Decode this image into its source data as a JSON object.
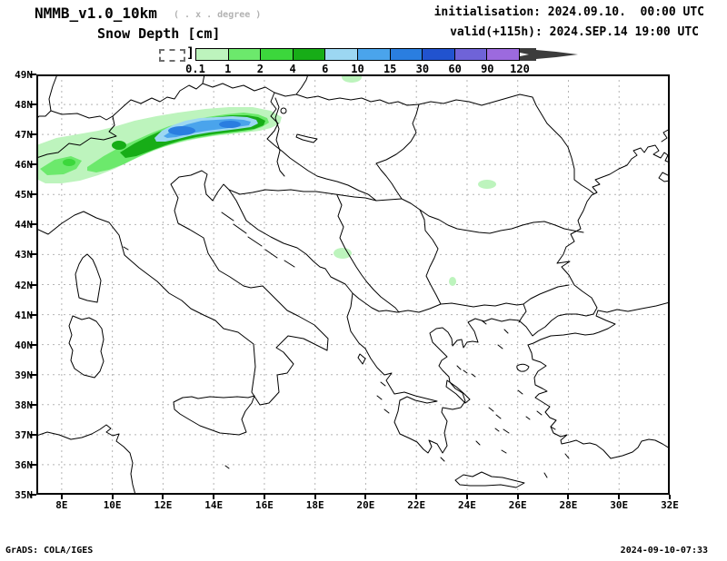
{
  "header": {
    "model": "NMMB_v1.0_10km",
    "resolution_note": "( . x . degree )",
    "variable": "Snow Depth [cm]",
    "init": "initialisation: 2024.09.10.  00:00 UTC",
    "valid": "valid(+115h): 2024.SEP.14 19:00 UTC"
  },
  "colorbar": {
    "bracket": "]",
    "tick_labels": [
      "0.1",
      "1",
      "2",
      "4",
      "6",
      "10",
      "15",
      "30",
      "60",
      "90",
      "120"
    ],
    "segment_colors": [
      "#bdf4bd",
      "#6ce96c",
      "#3cd73c",
      "#17ad17",
      "#9cd7f2",
      "#4aa4ec",
      "#2a7ee0",
      "#2153cf",
      "#6f63d8",
      "#9c6ade"
    ],
    "arrow_color": "#3c3c3c"
  },
  "axes": {
    "lat": [
      {
        "v": 49,
        "label": "49N"
      },
      {
        "v": 48,
        "label": "48N"
      },
      {
        "v": 47,
        "label": "47N"
      },
      {
        "v": 46,
        "label": "46N"
      },
      {
        "v": 45,
        "label": "45N"
      },
      {
        "v": 44,
        "label": "44N"
      },
      {
        "v": 43,
        "label": "43N"
      },
      {
        "v": 42,
        "label": "42N"
      },
      {
        "v": 41,
        "label": "41N"
      },
      {
        "v": 40,
        "label": "40N"
      },
      {
        "v": 39,
        "label": "39N"
      },
      {
        "v": 38,
        "label": "38N"
      },
      {
        "v": 37,
        "label": "37N"
      },
      {
        "v": 36,
        "label": "36N"
      },
      {
        "v": 35,
        "label": "35N"
      }
    ],
    "lon": [
      {
        "v": 8,
        "label": "8E"
      },
      {
        "v": 10,
        "label": "10E"
      },
      {
        "v": 12,
        "label": "12E"
      },
      {
        "v": 14,
        "label": "14E"
      },
      {
        "v": 16,
        "label": "16E"
      },
      {
        "v": 18,
        "label": "18E"
      },
      {
        "v": 20,
        "label": "20E"
      },
      {
        "v": 22,
        "label": "22E"
      },
      {
        "v": 24,
        "label": "24E"
      },
      {
        "v": 26,
        "label": "26E"
      },
      {
        "v": 28,
        "label": "28E"
      },
      {
        "v": 30,
        "label": "30E"
      },
      {
        "v": 32,
        "label": "32E"
      }
    ],
    "lat_range": [
      35,
      49
    ],
    "lon_range": [
      7,
      32
    ],
    "grid_lat": [
      36,
      37,
      38,
      39,
      40,
      41,
      42,
      43,
      44,
      45,
      46,
      47,
      48
    ],
    "grid_lon": [
      8,
      10,
      12,
      14,
      16,
      18,
      20,
      22,
      24,
      26,
      28,
      30
    ],
    "grid_color": "#b4b4b4"
  },
  "map_colors": {
    "snow_0p1_1": "#bdf4bd",
    "snow_1_2": "#6ce96c",
    "snow_2_4": "#3cd73c",
    "snow_4_6": "#17ad17",
    "snow_6_10": "#9cd7f2",
    "snow_10_15": "#4aa4ec",
    "snow_15_30": "#2a7ee0",
    "coastline": "#000000"
  },
  "footer": {
    "left": "GrADS: COLA/IGES",
    "right": "2024-09-10-07:33"
  },
  "chart_data": {
    "type": "heatmap",
    "title": "Snow Depth [cm]",
    "model": "NMMB_v1.0_10km",
    "initialisation": "2024.09.10. 00:00 UTC",
    "valid": "2024.SEP.14 19:00 UTC (forecast hour +115h)",
    "projection": "lat-lon",
    "lon_range_deg_E": [
      7,
      32
    ],
    "lat_range_deg_N": [
      35,
      49
    ],
    "grid": "dashed graticule, 1 deg latitude x 2 deg longitude",
    "legend_position": "top, horizontal colorbar",
    "levels_cm": [
      0.1,
      1,
      2,
      4,
      6,
      10,
      15,
      30,
      60,
      90,
      120
    ],
    "level_colors": [
      "#bdf4bd",
      "#6ce96c",
      "#3cd73c",
      "#17ad17",
      "#9cd7f2",
      "#4aa4ec",
      "#2a7ee0",
      "#2153cf",
      "#6f63d8",
      "#9c6ade"
    ],
    "regions": [
      {
        "name": "Alpine snow band",
        "lon_deg_E": [
          7.0,
          17.0
        ],
        "lat_deg_N": [
          45.4,
          47.8
        ],
        "description": "elongated WSW-ENE band along the Alps",
        "max_band_cm": "10-15",
        "core_location": "11.5-15E, 46.5-47.3N"
      },
      {
        "name": "Alps northeast faint spot",
        "lon_deg_E": [
          16.0,
          17.2
        ],
        "lat_deg_N": [
          47.4,
          47.9
        ],
        "value_cm": "0.1-1"
      },
      {
        "name": "Top-edge spot (Moravia ~19.5E 49N)",
        "lon_deg_E": [
          19.0,
          19.9
        ],
        "lat_deg_N": [
          48.8,
          49.0
        ],
        "value_cm": "0.1-1"
      },
      {
        "name": "Dinaric Alps spot",
        "lon_deg_E": [
          18.6,
          19.4
        ],
        "lat_deg_N": [
          42.9,
          43.3
        ],
        "value_cm": "0.1-1"
      },
      {
        "name": "Southern Carpathians spot",
        "lon_deg_E": [
          24.4,
          25.2
        ],
        "lat_deg_N": [
          45.2,
          45.6
        ],
        "value_cm": "0.1-1"
      },
      {
        "name": "Rila mountains spot",
        "lon_deg_E": [
          23.3,
          23.5
        ],
        "lat_deg_N": [
          42.0,
          42.4
        ],
        "value_cm": "0.1-1"
      }
    ]
  }
}
